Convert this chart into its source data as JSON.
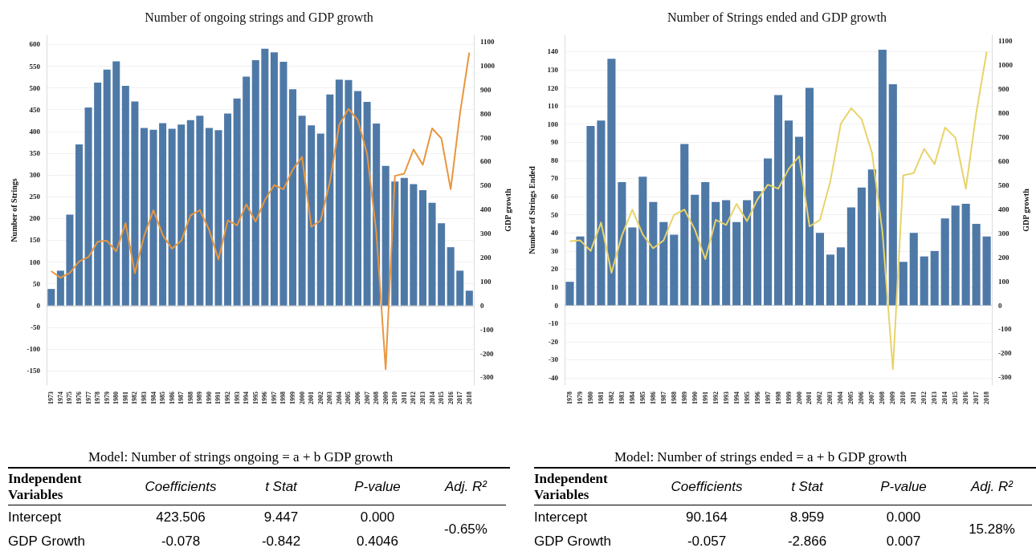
{
  "chart_data": [
    {
      "type": "bar",
      "title": "Number of ongoing strings and GDP growth",
      "ylabel": "Number of Strings",
      "y2label": "GDP growth",
      "categories": [
        "1973",
        "1974",
        "1975",
        "1976",
        "1977",
        "1978",
        "1979",
        "1980",
        "1981",
        "1982",
        "1983",
        "1984",
        "1985",
        "1986",
        "1987",
        "1988",
        "1989",
        "1990",
        "1991",
        "1992",
        "1993",
        "1994",
        "1995",
        "1996",
        "1997",
        "1998",
        "1999",
        "2000",
        "2001",
        "2002",
        "2003",
        "2004",
        "2005",
        "2006",
        "2007",
        "2008",
        "2009",
        "2010",
        "2011",
        "2012",
        "2013",
        "2014",
        "2015",
        "2016",
        "2017",
        "2018"
      ],
      "series": [
        {
          "type": "bar",
          "color": "#4e79a7",
          "values": [
            38,
            80,
            209,
            370,
            455,
            512,
            542,
            561,
            505,
            469,
            408,
            404,
            419,
            406,
            416,
            426,
            436,
            408,
            403,
            441,
            476,
            526,
            564,
            590,
            582,
            560,
            497,
            436,
            414,
            395,
            485,
            519,
            518,
            493,
            468,
            418,
            321,
            285,
            293,
            279,
            265,
            236,
            189,
            134,
            80,
            34
          ]
        },
        {
          "type": "line",
          "axis": "y2",
          "color": "#e8963f",
          "values": [
            143,
            116,
            136,
            184,
            202,
            266,
            270,
            226,
            344,
            135,
            290,
            398,
            294,
            237,
            270,
            376,
            398,
            315,
            192,
            355,
            334,
            422,
            350,
            440,
            502,
            485,
            567,
            620,
            328,
            355,
            516,
            754,
            820,
            774,
            633,
            303,
            -266,
            541,
            550,
            651,
            587,
            739,
            697,
            485,
            800,
            1055
          ]
        }
      ],
      "ylim": [
        -183,
        621
      ],
      "yticks": [
        -150,
        -100,
        -50,
        0,
        50,
        100,
        150,
        200,
        250,
        300,
        350,
        400,
        450,
        500,
        550,
        600
      ],
      "y2lim": [
        -332,
        1127
      ],
      "y2ticks": [
        -300,
        -200,
        -100,
        0,
        100,
        200,
        300,
        400,
        500,
        600,
        700,
        800,
        900,
        1000,
        1100
      ],
      "grid": "y",
      "marker": "none"
    },
    {
      "type": "bar",
      "title": "Number of Strings ended and GDP growth",
      "ylabel": "Number of Strings Ended",
      "y2label": "GDP growth",
      "categories": [
        "1978",
        "1979",
        "1980",
        "1981",
        "1982",
        "1983",
        "1984",
        "1985",
        "1986",
        "1987",
        "1988",
        "1989",
        "1990",
        "1991",
        "1992",
        "1993",
        "1994",
        "1995",
        "1996",
        "1997",
        "1998",
        "1999",
        "2000",
        "2001",
        "2002",
        "2003",
        "2004",
        "2005",
        "2006",
        "2007",
        "2008",
        "2009",
        "2010",
        "2011",
        "2012",
        "2013",
        "2014",
        "2015",
        "2016",
        "2017",
        "2018"
      ],
      "series": [
        {
          "type": "bar",
          "color": "#4e79a7",
          "values": [
            13,
            38,
            99,
            102,
            136,
            68,
            43,
            71,
            57,
            46,
            39,
            89,
            61,
            68,
            57,
            58,
            46,
            58,
            63,
            81,
            116,
            102,
            93,
            120,
            40,
            28,
            32,
            54,
            65,
            75,
            141,
            122,
            24,
            40,
            27,
            30,
            48,
            55,
            56,
            45,
            38
          ]
        },
        {
          "type": "line",
          "axis": "y2",
          "color": "#e8d36a",
          "values": [
            266,
            270,
            226,
            344,
            135,
            290,
            398,
            294,
            237,
            270,
            376,
            398,
            315,
            192,
            355,
            334,
            422,
            350,
            440,
            502,
            485,
            567,
            620,
            328,
            355,
            516,
            754,
            820,
            774,
            633,
            303,
            -266,
            541,
            550,
            651,
            587,
            739,
            697,
            485,
            800,
            1055
          ]
        }
      ],
      "ylim": [
        -44,
        149
      ],
      "yticks": [
        -40,
        -30,
        -20,
        -10,
        0,
        10,
        20,
        30,
        40,
        50,
        60,
        70,
        80,
        90,
        100,
        110,
        120,
        130,
        140
      ],
      "y2lim": [
        -332,
        1123
      ],
      "y2ticks": [
        -300,
        -200,
        -100,
        0,
        100,
        200,
        300,
        400,
        500,
        600,
        700,
        800,
        900,
        1000,
        1100
      ],
      "grid": "y",
      "marker": "none"
    },
    {
      "type": "other",
      "title": "Model: Number of strings ongoing = a + b GDP growth",
      "annotations": [
        "Independent Variables",
        "Coefficients",
        "t Stat",
        "P-value",
        "Adj. R²",
        "Intercept",
        "423.506",
        "9.447",
        "0.000",
        "-0.65%",
        "GDP Growth",
        "-0.078",
        "-0.842",
        "0.4046"
      ]
    },
    {
      "type": "other",
      "title": "Model: Number of strings ended = a + b GDP growth",
      "annotations": [
        "Independent Variables",
        "Coefficients",
        "t Stat",
        "P-value",
        "Adj. R²",
        "Intercept",
        "90.164",
        "8.959",
        "0.000",
        "15.28%",
        "GDP Growth",
        "-0.057",
        "-2.866",
        "0.007"
      ]
    }
  ]
}
